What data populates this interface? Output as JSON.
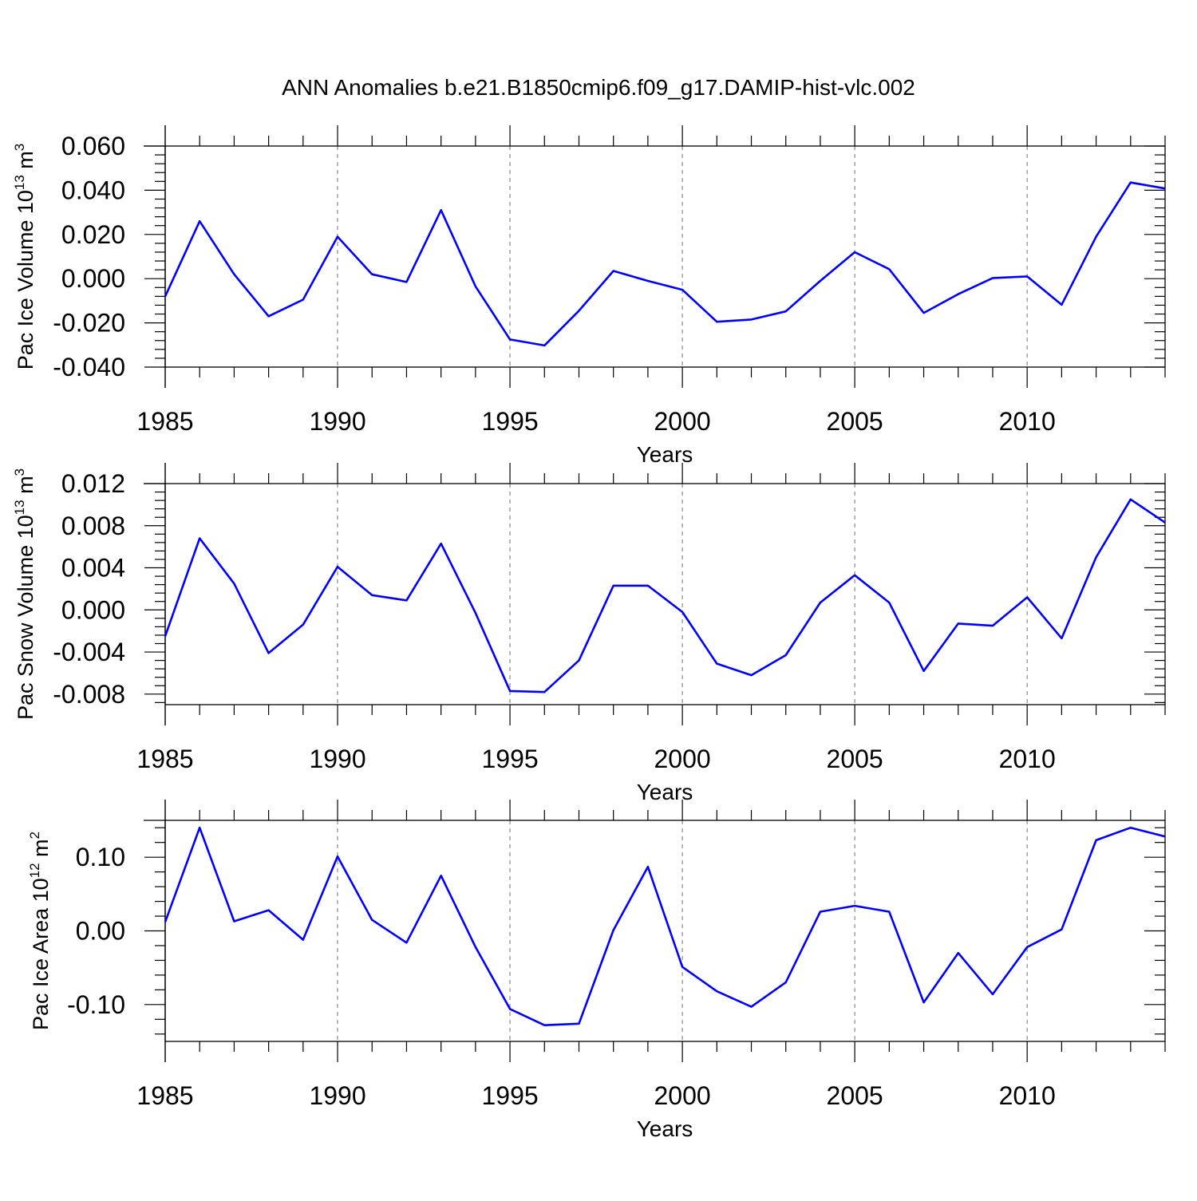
{
  "title": "ANN Anomalies b.e21.B1850cmip6.f09_g17.DAMIP-hist-vlc.002",
  "line_color": "#0000ff",
  "chart_data": [
    {
      "type": "line",
      "name": "pac-ice-volume",
      "ylabel_main": "Pac Ice Volume 10",
      "ylabel_exp": "13",
      "ylabel_unit": "m",
      "ylabel_unit_exp": "3",
      "xlabel": "Years",
      "xlim": [
        1985,
        2014
      ],
      "ylim": [
        -0.04,
        0.06
      ],
      "x_ticks": [
        1985,
        1990,
        1995,
        2000,
        2005,
        2010
      ],
      "x_tick_labels": [
        "1985",
        "1990",
        "1995",
        "2000",
        "2005",
        "2010"
      ],
      "y_ticks": [
        -0.04,
        -0.02,
        0.0,
        0.02,
        0.04,
        0.06
      ],
      "y_tick_labels": [
        "-0.040",
        "-0.020",
        "0.000",
        "0.020",
        "0.040",
        "0.060"
      ],
      "x": [
        1985,
        1986,
        1987,
        1988,
        1989,
        1990,
        1991,
        1992,
        1993,
        1994,
        1995,
        1996,
        1997,
        1998,
        1999,
        2000,
        2001,
        2002,
        2003,
        2004,
        2005,
        2006,
        2007,
        2008,
        2009,
        2010,
        2011,
        2012,
        2013,
        2014
      ],
      "values": [
        -0.008,
        0.026,
        0.002,
        -0.017,
        -0.0095,
        0.019,
        0.002,
        -0.0015,
        0.031,
        -0.0035,
        -0.0275,
        -0.0302,
        -0.0145,
        0.0035,
        -0.001,
        -0.005,
        -0.0195,
        -0.0185,
        -0.0148,
        -0.001,
        0.012,
        0.0043,
        -0.0155,
        -0.007,
        0.0003,
        0.001,
        -0.0118,
        0.019,
        0.0435,
        0.0408
      ]
    },
    {
      "type": "line",
      "name": "pac-snow-volume",
      "ylabel_main": "Pac Snow Volume 10",
      "ylabel_exp": "13",
      "ylabel_unit": "m",
      "ylabel_unit_exp": "3",
      "xlabel": "Years",
      "xlim": [
        1985,
        2014
      ],
      "ylim": [
        -0.009,
        0.012
      ],
      "x_ticks": [
        1985,
        1990,
        1995,
        2000,
        2005,
        2010
      ],
      "x_tick_labels": [
        "1985",
        "1990",
        "1995",
        "2000",
        "2005",
        "2010"
      ],
      "y_ticks": [
        -0.008,
        -0.004,
        0.0,
        0.004,
        0.008,
        0.012
      ],
      "y_tick_labels": [
        "-0.008",
        "-0.004",
        "0.000",
        "0.004",
        "0.008",
        "0.012"
      ],
      "x": [
        1985,
        1986,
        1987,
        1988,
        1989,
        1990,
        1991,
        1992,
        1993,
        1994,
        1995,
        1996,
        1997,
        1998,
        1999,
        2000,
        2001,
        2002,
        2003,
        2004,
        2005,
        2006,
        2007,
        2008,
        2009,
        2010,
        2011,
        2012,
        2013,
        2014
      ],
      "values": [
        -0.0025,
        0.0068,
        0.0025,
        -0.0041,
        -0.0014,
        0.0041,
        0.0014,
        0.0009,
        0.0063,
        -0.0003,
        -0.0077,
        -0.0078,
        -0.0048,
        0.0023,
        0.0023,
        -0.0002,
        -0.0051,
        -0.0062,
        -0.0043,
        0.0007,
        0.0033,
        0.0007,
        -0.0058,
        -0.0013,
        -0.0015,
        0.0012,
        -0.0027,
        0.005,
        0.0105,
        0.0083
      ]
    },
    {
      "type": "line",
      "name": "pac-ice-area",
      "ylabel_main": "Pac Ice Area 10",
      "ylabel_exp": "12",
      "ylabel_unit": "m",
      "ylabel_unit_exp": "2",
      "xlabel": "Years",
      "xlim": [
        1985,
        2014
      ],
      "ylim": [
        -0.15,
        0.15
      ],
      "x_ticks": [
        1985,
        1990,
        1995,
        2000,
        2005,
        2010
      ],
      "x_tick_labels": [
        "1985",
        "1990",
        "1995",
        "2000",
        "2005",
        "2010"
      ],
      "y_ticks": [
        -0.1,
        0.0,
        0.1
      ],
      "y_tick_labels": [
        "-0.10",
        "0.00",
        "0.10"
      ],
      "x": [
        1985,
        1986,
        1987,
        1988,
        1989,
        1990,
        1991,
        1992,
        1993,
        1994,
        1995,
        1996,
        1997,
        1998,
        1999,
        2000,
        2001,
        2002,
        2003,
        2004,
        2005,
        2006,
        2007,
        2008,
        2009,
        2010,
        2011,
        2012,
        2013,
        2014
      ],
      "values": [
        0.012,
        0.14,
        0.013,
        0.028,
        -0.012,
        0.101,
        0.015,
        -0.016,
        0.075,
        -0.022,
        -0.106,
        -0.128,
        -0.126,
        0.001,
        0.087,
        -0.049,
        -0.082,
        -0.103,
        -0.07,
        0.026,
        0.034,
        0.026,
        -0.097,
        -0.03,
        -0.086,
        -0.022,
        0.002,
        0.123,
        0.14,
        0.128
      ]
    }
  ]
}
